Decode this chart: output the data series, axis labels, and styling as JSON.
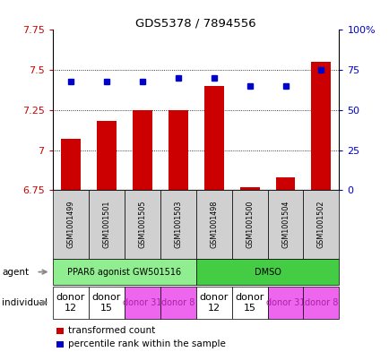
{
  "title": "GDS5378 / 7894556",
  "samples": [
    "GSM1001499",
    "GSM1001501",
    "GSM1001505",
    "GSM1001503",
    "GSM1001498",
    "GSM1001500",
    "GSM1001504",
    "GSM1001502"
  ],
  "bar_values": [
    7.07,
    7.18,
    7.25,
    7.25,
    7.4,
    6.77,
    6.83,
    7.55
  ],
  "percentile_values": [
    68,
    68,
    68,
    70,
    70,
    65,
    65,
    75
  ],
  "bar_color": "#cc0000",
  "dot_color": "#0000cc",
  "ylim_left": [
    6.75,
    7.75
  ],
  "ylim_right": [
    0,
    100
  ],
  "yticks_left": [
    6.75,
    7.0,
    7.25,
    7.5,
    7.75
  ],
  "ytick_labels_left": [
    "6.75",
    "7",
    "7.25",
    "7.5",
    "7.75"
  ],
  "yticks_right": [
    0,
    25,
    50,
    75,
    100
  ],
  "ytick_labels_right": [
    "0",
    "25",
    "50",
    "75",
    "100%"
  ],
  "agent_label1": "PPARδ agonist GW501516",
  "agent_label2": "DMSO",
  "agent_color1": "#90EE90",
  "agent_color2": "#44cc44",
  "individual_labels": [
    "donor\n12",
    "donor\n15",
    "donor 31",
    "donor 8",
    "donor\n12",
    "donor\n15",
    "donor 31",
    "donor 8"
  ],
  "individual_colors": [
    "#ffffff",
    "#ffffff",
    "#ee66ee",
    "#ee66ee",
    "#ffffff",
    "#ffffff",
    "#ee66ee",
    "#ee66ee"
  ],
  "individual_text_colors": [
    "#000000",
    "#000000",
    "#aa22aa",
    "#aa22aa",
    "#000000",
    "#000000",
    "#aa22aa",
    "#aa22aa"
  ],
  "individual_fontsizes": [
    8,
    8,
    7,
    7,
    8,
    8,
    7,
    7
  ],
  "legend_red_label": "transformed count",
  "legend_blue_label": "percentile rank within the sample",
  "bar_width": 0.55,
  "grid_yticks": [
    7.0,
    7.25,
    7.5
  ],
  "sample_box_color": "#d0d0d0"
}
